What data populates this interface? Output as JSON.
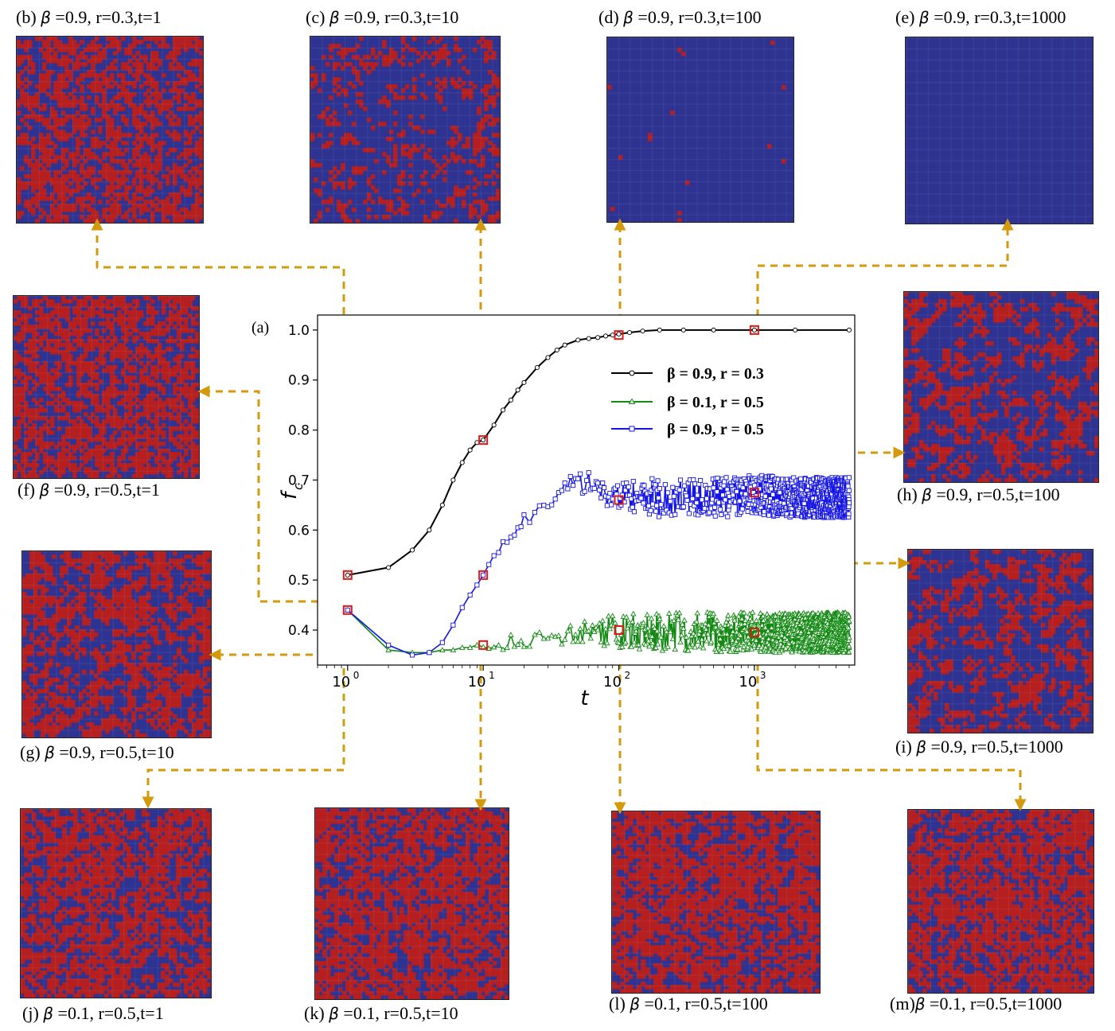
{
  "colors": {
    "cooperator": "#b51f1f",
    "defector": "#2e3391",
    "connector": "#d49a0d",
    "marker_highlight": "#e01818",
    "series_black": "#000000",
    "series_green": "#138a13",
    "series_blue": "#1515e6"
  },
  "panels": [
    {
      "id": "b",
      "letter": "(b)",
      "beta": "0.9",
      "r": "r=0.3",
      "t": "t=1",
      "density": 0.51
    },
    {
      "id": "c",
      "letter": "(c)",
      "beta": "0.9",
      "r": "r=0.3",
      "t": "t=10",
      "density": 0.22
    },
    {
      "id": "d",
      "letter": "(d)",
      "beta": "0.9",
      "r": "r=0.3",
      "t": "t=100",
      "density": 0.006
    },
    {
      "id": "e",
      "letter": "(e)",
      "beta": "0.9",
      "r": "r=0.3",
      "t": "t=1000",
      "density": 0.0
    },
    {
      "id": "f",
      "letter": "(f)",
      "beta": "0.9",
      "r": "r=0.5",
      "t": "t=1",
      "density": 0.56
    },
    {
      "id": "g",
      "letter": "(g)",
      "beta": "0.9",
      "r": "r=0.5",
      "t": "t=10",
      "density": 0.49
    },
    {
      "id": "h",
      "letter": "(h)",
      "beta": "0.9",
      "r": "r=0.5",
      "t": "t=100",
      "density": 0.34
    },
    {
      "id": "i",
      "letter": "(i)",
      "beta": "0.9",
      "r": "r=0.5",
      "t": "t=1000",
      "density": 0.33
    },
    {
      "id": "j",
      "letter": "(j)",
      "beta": "0.1",
      "r": "r=0.5",
      "t": "t=1",
      "density": 0.56
    },
    {
      "id": "k",
      "letter": "(k)",
      "beta": "0.1",
      "r": "r=0.5",
      "t": "t=10",
      "density": 0.63
    },
    {
      "id": "l",
      "letter": "(l)",
      "beta": "0.1",
      "r": "r=0.5",
      "t": "t=100",
      "density": 0.6
    },
    {
      "id": "m",
      "letter": "(m)",
      "beta": "0.1",
      "r": "r=0.5",
      "t": "t=1000",
      "density": 0.6
    }
  ],
  "chart_data": {
    "type": "line",
    "panel_label": "(a)",
    "xlabel": "t",
    "ylabel": "f",
    "ylabel_sub": "c",
    "xscale": "log",
    "xlim": [
      0.6,
      5500
    ],
    "ylim": [
      0.33,
      1.03
    ],
    "xticks": [
      {
        "value": 1,
        "base": "10",
        "exp": "0"
      },
      {
        "value": 10,
        "base": "10",
        "exp": "1"
      },
      {
        "value": 100,
        "base": "10",
        "exp": "2"
      },
      {
        "value": 1000,
        "base": "10",
        "exp": "3"
      }
    ],
    "yticks": [
      "0.4",
      "0.5",
      "0.6",
      "0.7",
      "0.8",
      "0.9",
      "1.0"
    ],
    "legend_position": "upper-right",
    "series": [
      {
        "name": "β = 0.9, r = 0.3",
        "color": "#000000",
        "marker": "circle",
        "x": [
          1,
          2,
          3,
          4,
          5,
          6,
          7,
          8,
          9,
          10,
          12,
          14,
          16,
          18,
          20,
          25,
          30,
          35,
          40,
          50,
          60,
          70,
          80,
          90,
          100,
          120,
          150,
          200,
          300,
          500,
          1000,
          2000,
          5000
        ],
        "y": [
          0.51,
          0.525,
          0.56,
          0.6,
          0.65,
          0.7,
          0.735,
          0.76,
          0.775,
          0.78,
          0.81,
          0.84,
          0.86,
          0.88,
          0.895,
          0.925,
          0.945,
          0.96,
          0.97,
          0.98,
          0.983,
          0.985,
          0.988,
          0.99,
          0.992,
          0.995,
          0.998,
          1.0,
          1.0,
          1.0,
          1.0,
          1.0,
          1.0
        ]
      },
      {
        "name": "β = 0.1, r = 0.5",
        "color": "#138a13",
        "marker": "triangle",
        "base_x": [
          1,
          2,
          3,
          4,
          5,
          6,
          7,
          8,
          9,
          10,
          12,
          15,
          20,
          25,
          30,
          40,
          50,
          60,
          70,
          80,
          100,
          150,
          300,
          600,
          1000,
          2000,
          5000
        ],
        "base_y": [
          0.44,
          0.36,
          0.355,
          0.355,
          0.36,
          0.36,
          0.365,
          0.365,
          0.37,
          0.37,
          0.372,
          0.375,
          0.378,
          0.38,
          0.385,
          0.392,
          0.395,
          0.395,
          0.397,
          0.397,
          0.398,
          0.398,
          0.397,
          0.396,
          0.396,
          0.395,
          0.395
        ],
        "noise_start": 10,
        "noise_amplitude": [
          0.01,
          0.04
        ]
      },
      {
        "name": "β = 0.9, r = 0.5",
        "color": "#1515e6",
        "marker": "square",
        "base_x": [
          1,
          2,
          3,
          4,
          5,
          6,
          7,
          8,
          9,
          10,
          12,
          15,
          20,
          25,
          30,
          35,
          40,
          50,
          60,
          70,
          80,
          100,
          150,
          300,
          600,
          1000,
          2000,
          5000
        ],
        "base_y": [
          0.44,
          0.37,
          0.35,
          0.355,
          0.375,
          0.41,
          0.445,
          0.47,
          0.49,
          0.51,
          0.55,
          0.58,
          0.62,
          0.635,
          0.645,
          0.665,
          0.69,
          0.7,
          0.69,
          0.67,
          0.665,
          0.66,
          0.665,
          0.665,
          0.665,
          0.67,
          0.665,
          0.665
        ],
        "noise_start": 12,
        "noise_amplitude": [
          0.005,
          0.04
        ]
      }
    ],
    "highlighted_points": [
      {
        "series": 0,
        "x": 1,
        "y": 0.51
      },
      {
        "series": 0,
        "x": 10,
        "y": 0.78
      },
      {
        "series": 0,
        "x": 100,
        "y": 0.99
      },
      {
        "series": 0,
        "x": 1000,
        "y": 1.0
      },
      {
        "series": 2,
        "x": 1,
        "y": 0.44
      },
      {
        "series": 2,
        "x": 10,
        "y": 0.51
      },
      {
        "series": 2,
        "x": 100,
        "y": 0.66
      },
      {
        "series": 2,
        "x": 1000,
        "y": 0.675
      },
      {
        "series": 1,
        "x": 10,
        "y": 0.37
      },
      {
        "series": 1,
        "x": 100,
        "y": 0.4
      },
      {
        "series": 1,
        "x": 1000,
        "y": 0.395
      }
    ]
  }
}
